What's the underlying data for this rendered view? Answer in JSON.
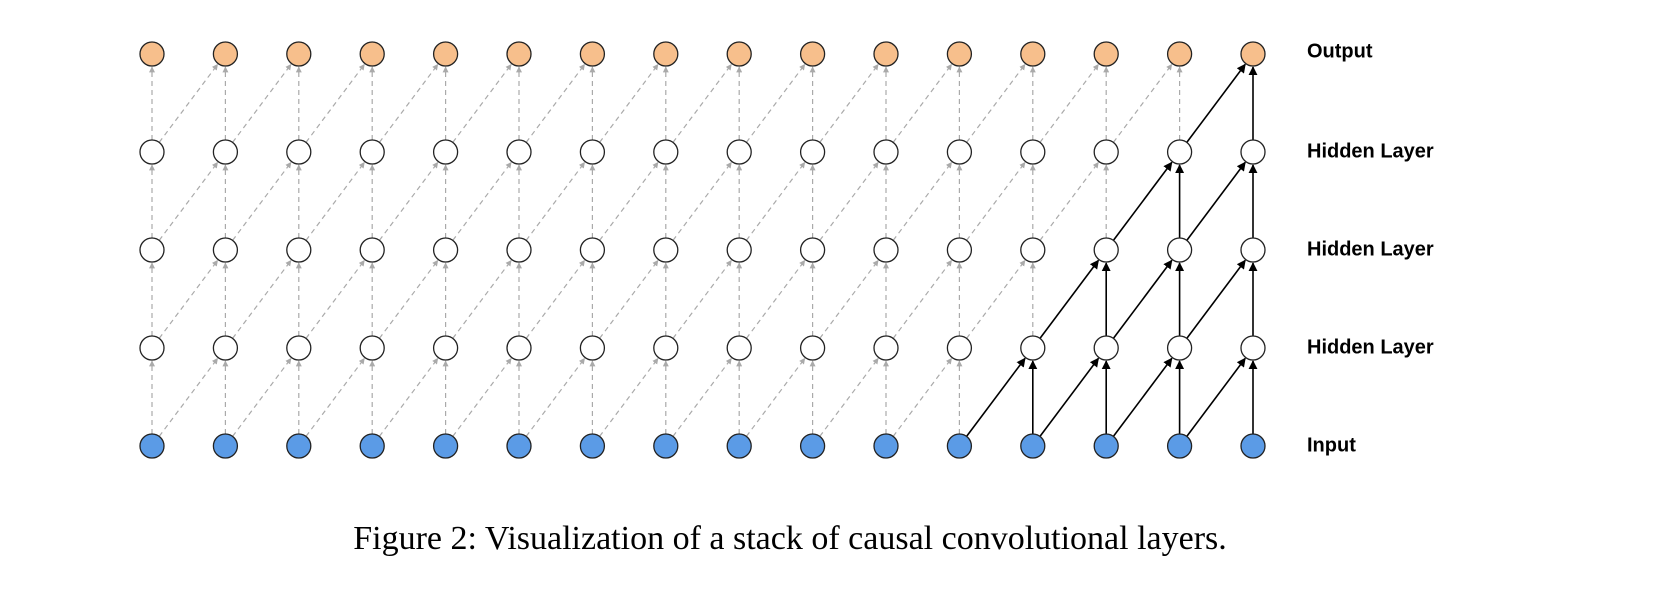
{
  "diagram": {
    "columns": 16,
    "layers": [
      {
        "id": "input",
        "label": "Input",
        "fill": "#5b9be6"
      },
      {
        "id": "hidden1",
        "label": "Hidden Layer",
        "fill": "#ffffff"
      },
      {
        "id": "hidden2",
        "label": "Hidden Layer",
        "fill": "#ffffff"
      },
      {
        "id": "hidden3",
        "label": "Hidden Layer",
        "fill": "#ffffff"
      },
      {
        "id": "output",
        "label": "Output",
        "fill": "#f7bf8c"
      }
    ],
    "kernel_size": 2,
    "highlighted_output_column": 16,
    "colors": {
      "node_stroke": "#222222",
      "dashed_edge": "#aaaaaa",
      "active_edge": "#000000"
    }
  },
  "caption": "Figure 2: Visualization of a stack of causal convolutional layers."
}
